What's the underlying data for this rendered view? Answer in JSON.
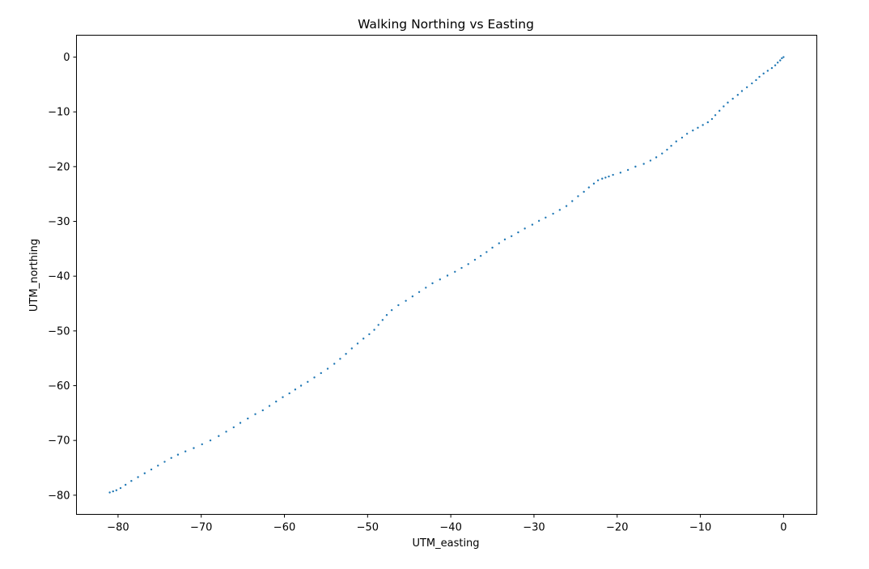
{
  "chart_data": {
    "type": "scatter",
    "title": "Walking Northing vs Easting",
    "xlabel": "UTM_easting",
    "ylabel": "UTM_northing",
    "xlim": [
      -85,
      4
    ],
    "ylim": [
      -83.5,
      4
    ],
    "xticks": [
      -80,
      -70,
      -60,
      -50,
      -40,
      -30,
      -20,
      -10,
      0
    ],
    "yticks": [
      0,
      -10,
      -20,
      -30,
      -40,
      -50,
      -60,
      -70,
      -80
    ],
    "xtick_labels": [
      "−80",
      "−70",
      "−60",
      "−50",
      "−40",
      "−30",
      "−20",
      "−10",
      "0"
    ],
    "ytick_labels": [
      "0",
      "−10",
      "−20",
      "−30",
      "−40",
      "−50",
      "−60",
      "−70",
      "−80"
    ],
    "grid": false,
    "marker_color": "#1f77b4",
    "series": [
      {
        "x": [
          0.0,
          -0.2,
          -0.4,
          -0.7,
          -1.0,
          -1.4,
          -1.9,
          -2.4,
          -2.9,
          -3.3,
          -3.8,
          -4.4,
          -5.0,
          -5.5,
          -6.1,
          -6.7,
          -7.2,
          -7.7,
          -8.2,
          -8.6,
          -9.1,
          -9.7,
          -10.3,
          -10.9,
          -11.6,
          -12.2,
          -12.9,
          -13.5,
          -14.0,
          -14.6,
          -15.3,
          -16.0,
          -16.8,
          -17.8,
          -18.7,
          -19.6,
          -20.5,
          -21.0,
          -21.4,
          -21.8,
          -22.3,
          -22.8,
          -23.4,
          -24.0,
          -24.7,
          -25.4,
          -26.1,
          -26.9,
          -27.7,
          -28.6,
          -29.4,
          -30.2,
          -31.1,
          -31.9,
          -32.7,
          -33.5,
          -34.2,
          -35.0,
          -35.7,
          -36.4,
          -37.1,
          -37.9,
          -38.7,
          -39.5,
          -40.4,
          -41.3,
          -42.2,
          -43.0,
          -43.8,
          -44.6,
          -45.4,
          -46.3,
          -47.1,
          -47.7,
          -48.2,
          -48.7,
          -49.2,
          -49.8,
          -50.5,
          -51.2,
          -51.9,
          -52.6,
          -53.3,
          -54.0,
          -54.8,
          -55.6,
          -56.4,
          -57.2,
          -58.0,
          -58.7,
          -59.4,
          -60.2,
          -61.0,
          -61.8,
          -62.6,
          -63.5,
          -64.4,
          -65.3,
          -66.1,
          -67.0,
          -67.9,
          -68.9,
          -69.9,
          -70.9,
          -71.9,
          -72.8,
          -73.6,
          -74.4,
          -75.2,
          -76.0,
          -76.8,
          -77.6,
          -78.4,
          -79.1,
          -79.7,
          -80.2,
          -80.6,
          -81.0
        ],
        "y": [
          0.0,
          -0.2,
          -0.6,
          -1.0,
          -1.5,
          -2.0,
          -2.5,
          -3.0,
          -3.6,
          -4.2,
          -4.8,
          -5.5,
          -6.2,
          -6.9,
          -7.6,
          -8.3,
          -9.0,
          -9.8,
          -10.6,
          -11.3,
          -11.9,
          -12.4,
          -12.9,
          -13.4,
          -14.0,
          -14.7,
          -15.4,
          -16.2,
          -16.9,
          -17.6,
          -18.3,
          -18.9,
          -19.5,
          -20.0,
          -20.6,
          -21.1,
          -21.5,
          -21.8,
          -22.0,
          -22.2,
          -22.5,
          -23.1,
          -23.8,
          -24.6,
          -25.4,
          -26.3,
          -27.2,
          -27.9,
          -28.6,
          -29.3,
          -29.9,
          -30.6,
          -31.3,
          -32.0,
          -32.7,
          -33.3,
          -34.0,
          -34.8,
          -35.6,
          -36.3,
          -37.0,
          -37.8,
          -38.5,
          -39.2,
          -39.9,
          -40.6,
          -41.3,
          -42.1,
          -42.9,
          -43.7,
          -44.5,
          -45.3,
          -46.2,
          -47.1,
          -48.0,
          -48.9,
          -49.8,
          -50.6,
          -51.4,
          -52.3,
          -53.2,
          -54.2,
          -55.1,
          -56.0,
          -56.9,
          -57.7,
          -58.5,
          -59.3,
          -60.0,
          -60.7,
          -61.4,
          -62.1,
          -62.9,
          -63.7,
          -64.5,
          -65.2,
          -66.0,
          -66.8,
          -67.6,
          -68.4,
          -69.2,
          -70.0,
          -70.7,
          -71.4,
          -72.0,
          -72.6,
          -73.2,
          -73.9,
          -74.6,
          -75.3,
          -76.0,
          -76.7,
          -77.4,
          -78.1,
          -78.7,
          -79.1,
          -79.3,
          -79.5
        ]
      }
    ]
  }
}
